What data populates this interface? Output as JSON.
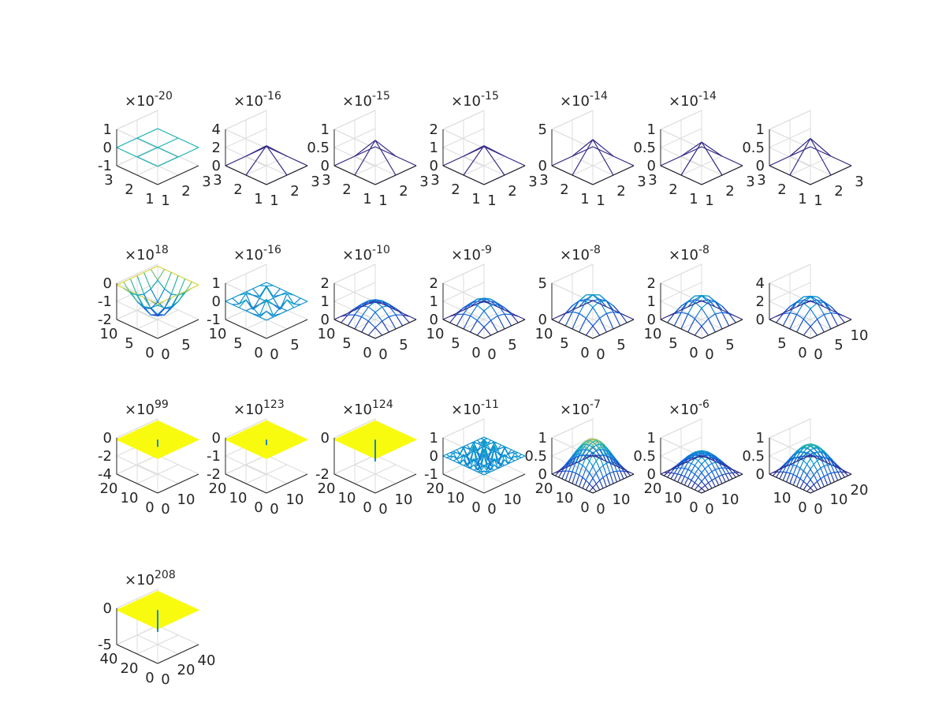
{
  "figure": {
    "background": "#ffffff",
    "grid": true,
    "axis_color": "#262626",
    "grid_color": "#dcdcdc",
    "colormap": "parula"
  },
  "chart_data": [
    {
      "type": "surface",
      "row": 1,
      "col": 1,
      "exponent": "-20",
      "zlim": [
        -1,
        1
      ],
      "zticks": [
        "1",
        "0",
        "-1"
      ],
      "xlim": [
        1,
        3
      ],
      "ylim": [
        1,
        3
      ],
      "xticks": [
        "1",
        "2",
        "3"
      ],
      "yticks": [
        "1",
        "2",
        "3"
      ],
      "n": 3,
      "shape": "flat",
      "xygrid": true
    },
    {
      "type": "surface",
      "row": 1,
      "col": 2,
      "exponent": "-16",
      "zlim": [
        0,
        4
      ],
      "zticks": [
        "4",
        "2",
        "0"
      ],
      "xlim": [
        1,
        3
      ],
      "ylim": [
        1,
        3
      ],
      "xticks": [
        "1",
        "2",
        "3"
      ],
      "yticks": [
        "1",
        "2",
        "3"
      ],
      "n": 3,
      "shape": "peak",
      "peak": 2.2
    },
    {
      "type": "surface",
      "row": 1,
      "col": 3,
      "exponent": "-15",
      "zlim": [
        0,
        1
      ],
      "zticks": [
        "1",
        "0.5",
        "0"
      ],
      "xlim": [
        1,
        3
      ],
      "ylim": [
        1,
        3
      ],
      "xticks": [
        "1",
        "2",
        "3"
      ],
      "yticks": [
        "1",
        "2",
        "3"
      ],
      "n": 3,
      "shape": "peak",
      "peak": 0.7
    },
    {
      "type": "surface",
      "row": 1,
      "col": 4,
      "exponent": "-15",
      "zlim": [
        0,
        2
      ],
      "zticks": [
        "2",
        "1",
        "0"
      ],
      "xlim": [
        1,
        3
      ],
      "ylim": [
        1,
        3
      ],
      "xticks": [
        "1",
        "2",
        "3"
      ],
      "yticks": [
        "1",
        "2",
        "3"
      ],
      "n": 3,
      "shape": "peak",
      "peak": 1.1
    },
    {
      "type": "surface",
      "row": 1,
      "col": 5,
      "exponent": "-14",
      "zlim": [
        0,
        5
      ],
      "zticks": [
        "5",
        "0"
      ],
      "xlim": [
        1,
        3
      ],
      "ylim": [
        1,
        3
      ],
      "xticks": [
        "1",
        "2",
        "3"
      ],
      "yticks": [
        "1",
        "2",
        "3"
      ],
      "n": 3,
      "shape": "peak",
      "peak": 3.6
    },
    {
      "type": "surface",
      "row": 1,
      "col": 6,
      "exponent": "-14",
      "zlim": [
        0,
        1
      ],
      "zticks": [
        "1",
        "0.5",
        "0"
      ],
      "xlim": [
        1,
        3
      ],
      "ylim": [
        1,
        3
      ],
      "xticks": [
        "1",
        "2",
        "3"
      ],
      "yticks": [
        "1",
        "2",
        "3"
      ],
      "n": 3,
      "shape": "peak",
      "peak": 0.65
    },
    {
      "type": "surface",
      "row": 1,
      "col": 7,
      "exponent": "",
      "zlim": [
        0,
        1
      ],
      "zticks": [
        "1",
        "0.5",
        "0"
      ],
      "xlim": [
        1,
        3
      ],
      "ylim": [
        1,
        3
      ],
      "xticks": [
        "1",
        "2",
        "3"
      ],
      "yticks": [
        "1",
        "2",
        "3"
      ],
      "n": 3,
      "shape": "peak",
      "peak": 0.75
    },
    {
      "type": "surface",
      "row": 2,
      "col": 1,
      "exponent": "18",
      "zlim": [
        -2,
        0
      ],
      "zticks": [
        "0",
        "-1",
        "-2"
      ],
      "xlim": [
        0,
        10
      ],
      "ylim": [
        0,
        10
      ],
      "xticks": [
        "0",
        "5"
      ],
      "yticks": [
        "0",
        "5",
        "10"
      ],
      "n": 7,
      "shape": "dip",
      "peak": -1.7
    },
    {
      "type": "surface",
      "row": 2,
      "col": 2,
      "exponent": "-16",
      "zlim": [
        -1,
        1
      ],
      "zticks": [
        "1",
        "0",
        "-1"
      ],
      "xlim": [
        0,
        10
      ],
      "ylim": [
        0,
        10
      ],
      "xticks": [
        "0",
        "5"
      ],
      "yticks": [
        "0",
        "5",
        "10"
      ],
      "n": 7,
      "shape": "osc",
      "peak": 0.9
    },
    {
      "type": "surface",
      "row": 2,
      "col": 3,
      "exponent": "-10",
      "zlim": [
        0,
        2
      ],
      "zticks": [
        "2",
        "1",
        "0"
      ],
      "xlim": [
        0,
        10
      ],
      "ylim": [
        0,
        10
      ],
      "xticks": [
        "0",
        "5"
      ],
      "yticks": [
        "0",
        "5",
        "10"
      ],
      "n": 7,
      "shape": "bump",
      "peak": 1.0
    },
    {
      "type": "surface",
      "row": 2,
      "col": 4,
      "exponent": "-9",
      "zlim": [
        0,
        2
      ],
      "zticks": [
        "2",
        "1",
        "0"
      ],
      "xlim": [
        0,
        10
      ],
      "ylim": [
        0,
        10
      ],
      "xticks": [
        "0",
        "5"
      ],
      "yticks": [
        "0",
        "5",
        "10"
      ],
      "n": 7,
      "shape": "bump",
      "peak": 1.1
    },
    {
      "type": "surface",
      "row": 2,
      "col": 5,
      "exponent": "-8",
      "zlim": [
        0,
        5
      ],
      "zticks": [
        "5",
        "0"
      ],
      "xlim": [
        0,
        10
      ],
      "ylim": [
        0,
        10
      ],
      "xticks": [
        "0",
        "5"
      ],
      "yticks": [
        "0",
        "5",
        "10"
      ],
      "n": 7,
      "shape": "bump",
      "peak": 3.4
    },
    {
      "type": "surface",
      "row": 2,
      "col": 6,
      "exponent": "-8",
      "zlim": [
        0,
        2
      ],
      "zticks": [
        "2",
        "1",
        "0"
      ],
      "xlim": [
        0,
        10
      ],
      "ylim": [
        0,
        10
      ],
      "xticks": [
        "0",
        "5"
      ],
      "yticks": [
        "0",
        "5",
        "10"
      ],
      "n": 7,
      "shape": "bump",
      "peak": 1.3
    },
    {
      "type": "surface",
      "row": 2,
      "col": 7,
      "exponent": "",
      "zlim": [
        0,
        4
      ],
      "zticks": [
        "4",
        "2",
        "0"
      ],
      "xlim": [
        0,
        10
      ],
      "ylim": [
        0,
        10
      ],
      "xticks": [
        "0",
        "5",
        "10"
      ],
      "yticks": [
        "0",
        "5"
      ],
      "n": 7,
      "shape": "bump",
      "peak": 2.5
    },
    {
      "type": "surface",
      "row": 3,
      "col": 1,
      "exponent": "99",
      "zlim": [
        -4,
        0
      ],
      "zticks": [
        "0",
        "-2",
        "-4"
      ],
      "xlim": [
        0,
        20
      ],
      "ylim": [
        0,
        20
      ],
      "xticks": [
        "0",
        "10"
      ],
      "yticks": [
        "0",
        "10",
        "20"
      ],
      "n": 13,
      "shape": "flat",
      "spike": -0.2
    },
    {
      "type": "surface",
      "row": 3,
      "col": 2,
      "exponent": "123",
      "zlim": [
        -2,
        0
      ],
      "zticks": [
        "0",
        "-1",
        "-2"
      ],
      "xlim": [
        0,
        20
      ],
      "ylim": [
        0,
        20
      ],
      "xticks": [
        "0",
        "10"
      ],
      "yticks": [
        "0",
        "10",
        "20"
      ],
      "n": 13,
      "shape": "flat",
      "spike": -0.15
    },
    {
      "type": "surface",
      "row": 3,
      "col": 3,
      "exponent": "124",
      "zlim": [
        -2,
        0
      ],
      "zticks": [
        "0",
        "-2"
      ],
      "xlim": [
        0,
        20
      ],
      "ylim": [
        0,
        20
      ],
      "xticks": [
        "0",
        "10"
      ],
      "yticks": [
        "0",
        "10",
        "20"
      ],
      "n": 13,
      "shape": "flat",
      "spike": -0.6
    },
    {
      "type": "surface",
      "row": 3,
      "col": 4,
      "exponent": "-11",
      "zlim": [
        -1,
        1
      ],
      "zticks": [
        "1",
        "0",
        "-1"
      ],
      "xlim": [
        0,
        20
      ],
      "ylim": [
        0,
        20
      ],
      "xticks": [
        "0",
        "10"
      ],
      "yticks": [
        "0",
        "10",
        "20"
      ],
      "n": 13,
      "shape": "osc",
      "peak": 0.8
    },
    {
      "type": "surface",
      "row": 3,
      "col": 5,
      "exponent": "-7",
      "zlim": [
        0,
        1
      ],
      "zticks": [
        "1",
        "0.5",
        "0"
      ],
      "xlim": [
        0,
        20
      ],
      "ylim": [
        0,
        20
      ],
      "xticks": [
        "0",
        "10"
      ],
      "yticks": [
        "0",
        "10",
        "20"
      ],
      "n": 13,
      "shape": "bump",
      "peak": 0.95
    },
    {
      "type": "surface",
      "row": 3,
      "col": 6,
      "exponent": "-6",
      "zlim": [
        0,
        1
      ],
      "zticks": [
        "1",
        "0.5",
        "0"
      ],
      "xlim": [
        0,
        20
      ],
      "ylim": [
        0,
        20
      ],
      "xticks": [
        "0",
        "10"
      ],
      "yticks": [
        "0",
        "10",
        "20"
      ],
      "n": 13,
      "shape": "bump",
      "peak": 0.6
    },
    {
      "type": "surface",
      "row": 3,
      "col": 7,
      "exponent": "",
      "zlim": [
        0,
        1
      ],
      "zticks": [
        "1",
        "0.5",
        "0"
      ],
      "xlim": [
        0,
        20
      ],
      "ylim": [
        0,
        20
      ],
      "xticks": [
        "0",
        "10",
        "20"
      ],
      "yticks": [
        "0",
        "10"
      ],
      "n": 13,
      "shape": "bump",
      "peak": 0.8
    },
    {
      "type": "surface",
      "row": 4,
      "col": 1,
      "exponent": "208",
      "zlim": [
        -5,
        0
      ],
      "zticks": [
        "0",
        "-5"
      ],
      "xlim": [
        0,
        40
      ],
      "ylim": [
        0,
        40
      ],
      "xticks": [
        "0",
        "20",
        "40"
      ],
      "yticks": [
        "0",
        "20",
        "40"
      ],
      "n": 15,
      "shape": "flat",
      "spike": -0.6
    }
  ]
}
